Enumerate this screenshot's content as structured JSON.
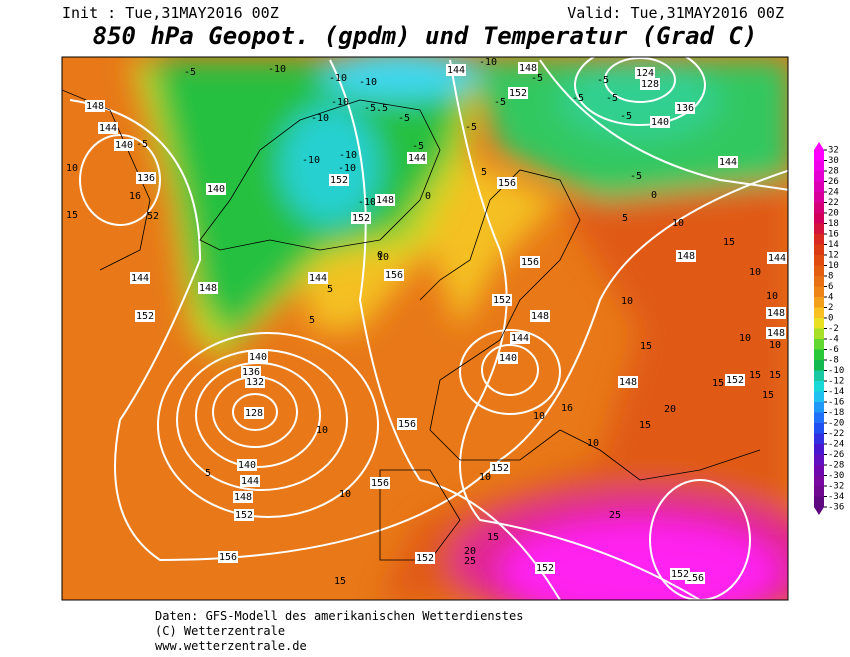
{
  "header": {
    "init": "Init : Tue,31MAY2016 00Z",
    "valid": "Valid: Tue,31MAY2016 00Z",
    "title": "850 hPa Geopot. (gpdm) und Temperatur (Grad C)"
  },
  "colorbar": {
    "ticks": [
      32,
      30,
      28,
      26,
      24,
      22,
      20,
      18,
      16,
      14,
      12,
      10,
      8,
      6,
      4,
      2,
      0,
      -2,
      -4,
      -6,
      -8,
      -10,
      -12,
      -14,
      -16,
      -18,
      -20,
      -22,
      -24,
      -26,
      -28,
      -30,
      -32,
      -34,
      -36
    ],
    "colors": [
      "#ff00ff",
      "#f000e8",
      "#e400d0",
      "#dc00b4",
      "#d8009a",
      "#d40078",
      "#d2005a",
      "#d4143c",
      "#d82a20",
      "#dc3c14",
      "#e04c10",
      "#e45e10",
      "#e87014",
      "#ee8418",
      "#f2a01c",
      "#f8c020",
      "#e8e020",
      "#a8e028",
      "#60d830",
      "#28c838",
      "#14b850",
      "#18c8a0",
      "#18d8d8",
      "#20c0f0",
      "#2098f8",
      "#2070f8",
      "#2050f0",
      "#3030e0",
      "#4818d0",
      "#6010c0",
      "#7008b0",
      "#7808a0",
      "#700890",
      "#600880"
    ]
  },
  "map": {
    "labels": [
      "148",
      "144",
      "140",
      "136",
      "10",
      "15",
      "140",
      "144",
      "148",
      "152",
      "144",
      "5",
      "5",
      "140",
      "136",
      "132",
      "128",
      "10",
      "5",
      "140",
      "144",
      "148",
      "152",
      "10",
      "156",
      "156",
      "15",
      "156",
      "152",
      "10",
      "152",
      "20",
      "25",
      "15",
      "152",
      "25",
      "156",
      "152",
      "10",
      "10",
      "15",
      "148",
      "15",
      "152",
      "15",
      "15",
      "15",
      "20",
      "140",
      "144",
      "148",
      "152",
      "156",
      "156",
      "156",
      "10",
      "0",
      "5",
      "5",
      "10",
      "15",
      "148",
      "10",
      "144",
      "148",
      "152",
      "-5",
      "-5",
      "-5",
      "-5",
      "-5",
      "124",
      "128",
      "136",
      "140",
      "-5",
      "-10",
      "-10",
      "-10",
      "-10",
      "-10",
      "-5.5",
      "-5",
      "-10",
      "-5",
      "-5",
      "144",
      "-10",
      "-10",
      "152",
      "-10",
      "-10",
      "148",
      "152",
      "144",
      "-5",
      "0",
      "-5",
      "0",
      "-5",
      "16",
      "52",
      "10",
      "148",
      "10",
      "15",
      "10",
      "148",
      "16",
      "10",
      "144"
    ]
  },
  "footer": {
    "source": "Daten: GFS-Modell des amerikanischen Wetterdienstes",
    "copyright": "(C) Wetterzentrale",
    "url": "www.wetterzentrale.de"
  }
}
